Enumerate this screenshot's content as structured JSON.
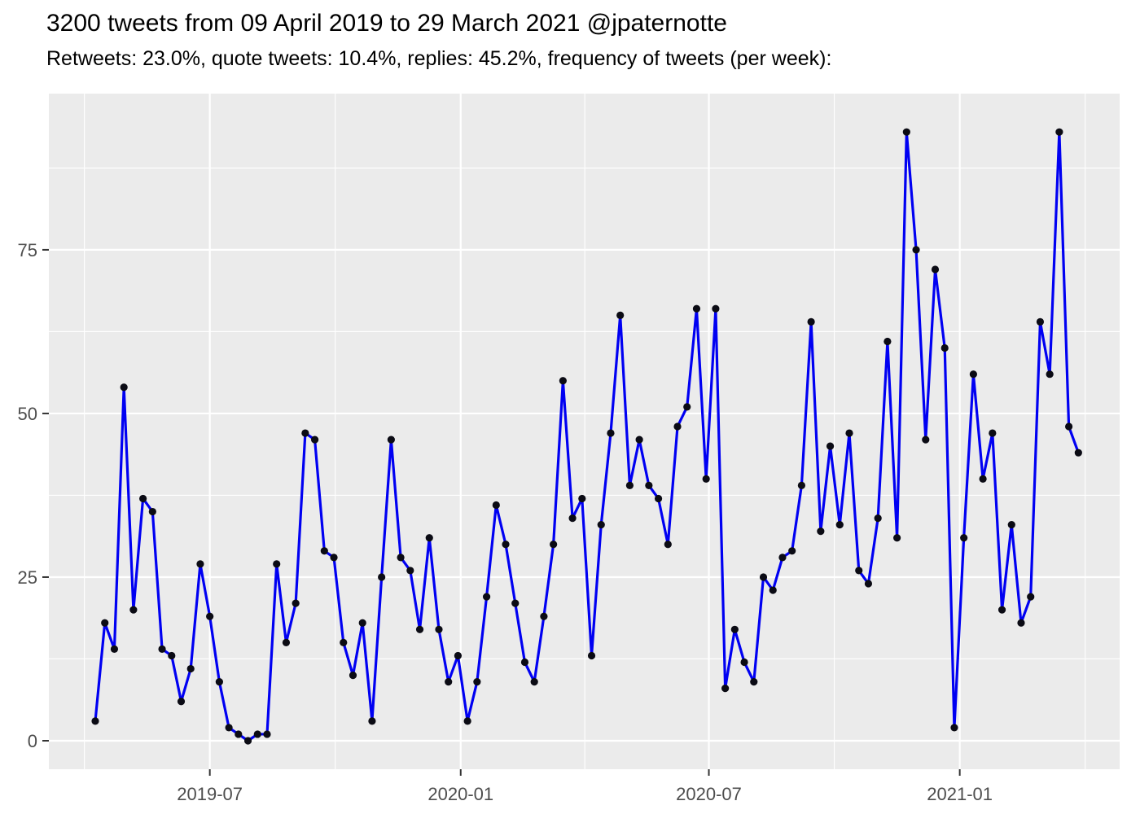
{
  "title": "3200 tweets from 09 April 2019 to 29 March 2021 @jpaternotte",
  "subtitle": "Retweets: 23.0%, quote tweets: 10.4%, replies: 45.2%, frequency of tweets (per week):",
  "chart_data": {
    "type": "line",
    "series_name": "tweets per week",
    "x_start_week": "2019-04-08",
    "x_end_week": "2021-03-29",
    "week_step_days": 7,
    "total_tweets": 3200,
    "values": [
      3,
      18,
      14,
      54,
      20,
      37,
      35,
      14,
      13,
      6,
      11,
      27,
      19,
      9,
      2,
      1,
      0,
      1,
      1,
      27,
      15,
      21,
      47,
      46,
      29,
      28,
      15,
      10,
      18,
      3,
      25,
      46,
      28,
      26,
      17,
      31,
      17,
      9,
      13,
      3,
      9,
      22,
      36,
      30,
      21,
      12,
      9,
      19,
      30,
      55,
      34,
      37,
      13,
      33,
      47,
      65,
      39,
      46,
      39,
      37,
      30,
      48,
      51,
      66,
      40,
      66,
      8,
      17,
      12,
      9,
      25,
      23,
      28,
      29,
      39,
      64,
      32,
      45,
      33,
      47,
      26,
      24,
      34,
      61,
      31,
      93,
      75,
      46,
      72,
      60,
      2,
      31,
      56,
      40,
      47,
      20,
      33,
      18,
      22,
      64,
      56,
      93,
      48,
      44
    ],
    "x_tick_labels": [
      "2019-07",
      "2020-01",
      "2020-07",
      "2021-01"
    ],
    "x_tick_dates": [
      "2019-07-01",
      "2020-01-01",
      "2020-07-01",
      "2021-01-01"
    ],
    "x_tick_day_offsets": [
      84,
      268,
      450,
      634
    ],
    "y_ticks": [
      0,
      25,
      50,
      75
    ],
    "y_minor_gridlines": [
      12.5,
      37.5,
      62.5,
      87.5
    ],
    "ylim": [
      -4.75,
      99.75
    ],
    "grid": true,
    "legend_position": "none",
    "line_color": "#0000f2",
    "point_color": "#0b0b14",
    "panel_bg": "#ebebeb",
    "grid_color": "#ffffff",
    "axis_text_color": "#4d4d4d",
    "tick_mark_color": "#333333"
  }
}
